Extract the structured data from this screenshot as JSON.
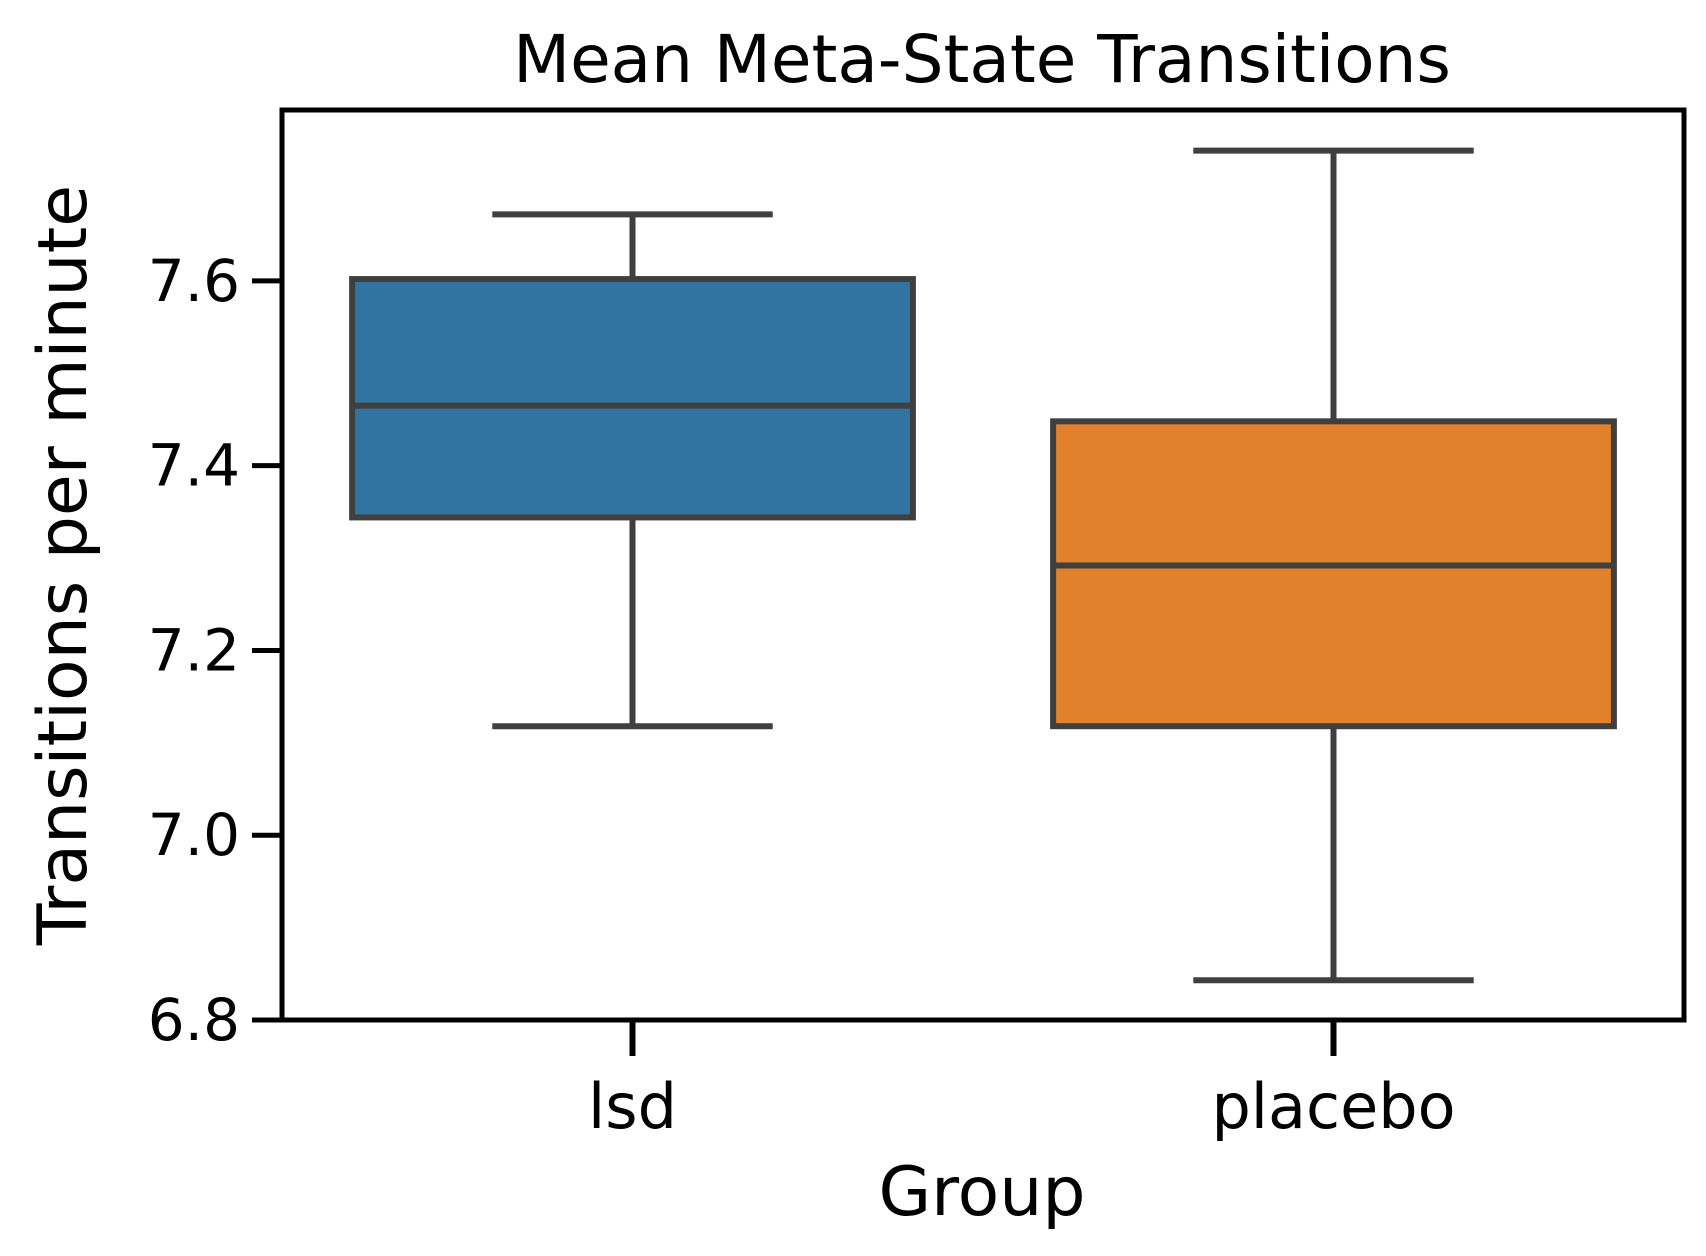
{
  "chart_data": {
    "type": "box",
    "title": "Mean Meta-State Transitions",
    "xlabel": "Group",
    "ylabel": "Transitions per minute",
    "ylim": [
      6.8,
      7.785
    ],
    "yticks": [
      6.8,
      7.0,
      7.2,
      7.4,
      7.6
    ],
    "ytick_labels": [
      "6.8",
      "7.0",
      "7.2",
      "7.4",
      "7.6"
    ],
    "grid": false,
    "categories": [
      "lsd",
      "placebo"
    ],
    "boxes": [
      {
        "category": "lsd",
        "whisker_low": 7.118,
        "q1": 7.344,
        "median": 7.465,
        "q3": 7.602,
        "whisker_high": 7.672,
        "color": "#3274a1"
      },
      {
        "category": "placebo",
        "whisker_low": 6.843,
        "q1": 7.118,
        "median": 7.292,
        "q3": 7.448,
        "whisker_high": 7.741,
        "color": "#e1812c"
      }
    ],
    "line_color": "#3f3f3f"
  }
}
